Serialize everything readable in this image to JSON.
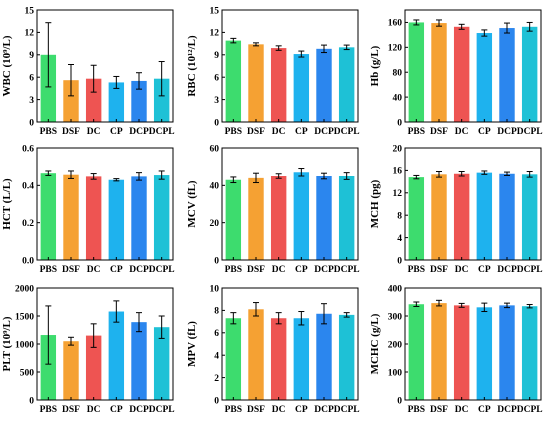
{
  "colors": {
    "PBS": "#3ddc6e",
    "DSF": "#f5a133",
    "DC": "#ee5452",
    "CP": "#1eb2ee",
    "DCP": "#2b86ee",
    "DCPL": "#1ec1d6"
  },
  "chart_data": [
    {
      "type": "bar",
      "ylabel": "WBC (10⁹/L)",
      "categories": [
        "PBS",
        "DSF",
        "DC",
        "CP",
        "DCP",
        "DCPL"
      ],
      "values": [
        9.0,
        5.6,
        5.8,
        5.3,
        5.5,
        5.8
      ],
      "errors": [
        4.3,
        2.1,
        1.8,
        0.8,
        1.1,
        2.3
      ],
      "ylim": [
        0,
        15
      ],
      "yticks": [
        0,
        3,
        6,
        9,
        12,
        15
      ]
    },
    {
      "type": "bar",
      "ylabel": "RBC (10¹²/L)",
      "categories": [
        "PBS",
        "DSF",
        "DC",
        "CP",
        "DCP",
        "DCPL"
      ],
      "values": [
        10.9,
        10.4,
        9.9,
        9.1,
        9.8,
        10.0
      ],
      "errors": [
        0.3,
        0.2,
        0.3,
        0.4,
        0.5,
        0.3
      ],
      "ylim": [
        0,
        15
      ],
      "yticks": [
        0,
        3,
        6,
        9,
        12,
        15
      ]
    },
    {
      "type": "bar",
      "ylabel": "Hb (g/L)",
      "categories": [
        "PBS",
        "DSF",
        "DC",
        "CP",
        "DCP",
        "DCPL"
      ],
      "values": [
        160,
        159,
        153,
        143,
        151,
        153
      ],
      "errors": [
        4,
        5,
        4,
        5,
        8,
        7
      ],
      "ylim": [
        0,
        180
      ],
      "yticks": [
        0,
        40,
        80,
        120,
        160
      ]
    },
    {
      "type": "bar",
      "ylabel": "HCT (L/L)",
      "categories": [
        "PBS",
        "DSF",
        "DC",
        "CP",
        "DCP",
        "DCPL"
      ],
      "values": [
        0.465,
        0.457,
        0.448,
        0.43,
        0.448,
        0.455
      ],
      "errors": [
        0.012,
        0.02,
        0.015,
        0.006,
        0.02,
        0.022
      ],
      "ylim": [
        0,
        0.6
      ],
      "yticks": [
        0.0,
        0.2,
        0.4,
        0.6
      ]
    },
    {
      "type": "bar",
      "ylabel": "MCV (fL)",
      "categories": [
        "PBS",
        "DSF",
        "DC",
        "CP",
        "DCP",
        "DCPL"
      ],
      "values": [
        43,
        44,
        45,
        47,
        45,
        45
      ],
      "errors": [
        1.5,
        2.5,
        1.2,
        2,
        1.5,
        1.8
      ],
      "ylim": [
        0,
        60
      ],
      "yticks": [
        0,
        20,
        40,
        60
      ]
    },
    {
      "type": "bar",
      "ylabel": "MCH (pg)",
      "categories": [
        "PBS",
        "DSF",
        "DC",
        "CP",
        "DCP",
        "DCPL"
      ],
      "values": [
        14.8,
        15.3,
        15.4,
        15.6,
        15.4,
        15.3
      ],
      "errors": [
        0.3,
        0.5,
        0.4,
        0.3,
        0.3,
        0.5
      ],
      "ylim": [
        0,
        20
      ],
      "yticks": [
        0,
        4,
        8,
        12,
        16,
        20
      ]
    },
    {
      "type": "bar",
      "ylabel": "PLT (10⁹/L)",
      "categories": [
        "PBS",
        "DSF",
        "DC",
        "CP",
        "DCP",
        "DCPL"
      ],
      "values": [
        1160,
        1050,
        1150,
        1580,
        1390,
        1300
      ],
      "errors": [
        520,
        70,
        210,
        190,
        170,
        200
      ],
      "ylim": [
        0,
        2000
      ],
      "yticks": [
        0,
        500,
        1000,
        1500,
        2000
      ]
    },
    {
      "type": "bar",
      "ylabel": "MPV (fL)",
      "categories": [
        "PBS",
        "DSF",
        "DC",
        "CP",
        "DCP",
        "DCPL"
      ],
      "values": [
        7.3,
        8.1,
        7.3,
        7.3,
        7.7,
        7.6
      ],
      "errors": [
        0.5,
        0.6,
        0.5,
        0.6,
        0.9,
        0.2
      ],
      "ylim": [
        0,
        10
      ],
      "yticks": [
        0,
        2,
        4,
        6,
        8,
        10
      ]
    },
    {
      "type": "bar",
      "ylabel": "MCHC (g/L)",
      "categories": [
        "PBS",
        "DSF",
        "DC",
        "CP",
        "DCP",
        "DCPL"
      ],
      "values": [
        342,
        346,
        338,
        331,
        338,
        335
      ],
      "errors": [
        8,
        10,
        7,
        15,
        8,
        6
      ],
      "ylim": [
        0,
        400
      ],
      "yticks": [
        0,
        100,
        200,
        300,
        400
      ]
    }
  ]
}
